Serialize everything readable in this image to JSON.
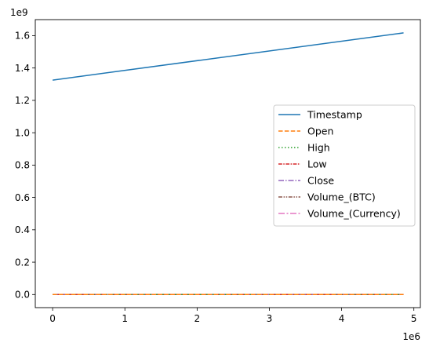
{
  "chart_data": {
    "type": "line",
    "x_offset_label": "1e6",
    "y_offset_label": "1e9",
    "x_ticks": [
      0,
      1,
      2,
      3,
      4,
      5
    ],
    "x_tick_labels": [
      "0",
      "1",
      "2",
      "3",
      "4",
      "5"
    ],
    "y_ticks": [
      0,
      0.2,
      0.4,
      0.6,
      0.8,
      1.0,
      1.2,
      1.4,
      1.6
    ],
    "y_tick_labels": [
      "0.0",
      "0.2",
      "0.4",
      "0.6",
      "0.8",
      "1.0",
      "1.2",
      "1.4",
      "1.6"
    ],
    "xlim": [
      -0.24,
      5.09
    ],
    "ylim": [
      -0.081,
      1.699
    ],
    "legend_position": "center-right",
    "series": [
      {
        "name": "Timestamp",
        "color": "#1f77b4",
        "dash": "solid",
        "x": [
          0,
          4.857
        ],
        "y": [
          1.3252,
          1.6169
        ]
      },
      {
        "name": "Open",
        "color": "#ff7f0e",
        "dash": "dashed",
        "x": [
          0,
          4.857
        ],
        "y": [
          0,
          0
        ]
      },
      {
        "name": "High",
        "color": "#2ca02c",
        "dash": "dotted",
        "x": [
          0,
          4.857
        ],
        "y": [
          0,
          0
        ]
      },
      {
        "name": "Low",
        "color": "#d62728",
        "dash": "dashdot",
        "x": [
          0,
          4.857
        ],
        "y": [
          0,
          0
        ]
      },
      {
        "name": "Close",
        "color": "#9467bd",
        "dash": "longdashdot",
        "x": [
          0,
          4.857
        ],
        "y": [
          0,
          0
        ]
      },
      {
        "name": "Volume_(BTC)",
        "color": "#8c564b",
        "dash": "dashdotdot",
        "x": [
          0,
          4.857
        ],
        "y": [
          0,
          0
        ]
      },
      {
        "name": "Volume_(Currency)",
        "color": "#e377c2",
        "dash": "longdash",
        "x": [
          0,
          4.857
        ],
        "y": [
          0,
          0
        ]
      }
    ]
  }
}
